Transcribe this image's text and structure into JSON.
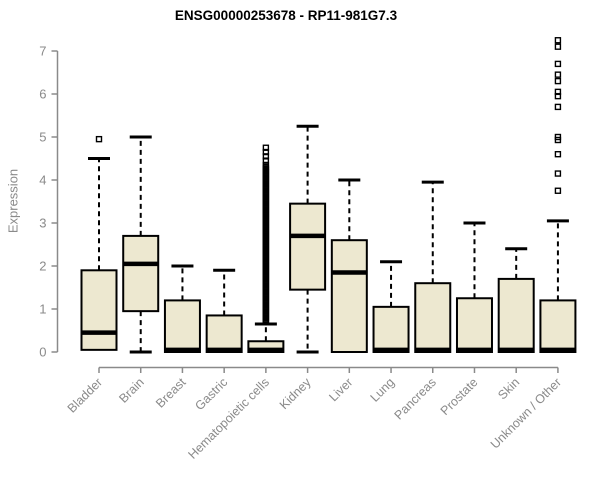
{
  "chart_data": {
    "type": "boxplot",
    "title": "ENSG00000253678 - RP11-981G7.3",
    "ylabel": "Expression",
    "xlabel": "",
    "ylim": [
      0,
      7.3
    ],
    "yticks": [
      0,
      1,
      2,
      3,
      4,
      5,
      6,
      7
    ],
    "grid": false,
    "legend": "none",
    "categories": [
      "Bladder",
      "Brain",
      "Breast",
      "Gastric",
      "Hematopoietic cells",
      "Kidney",
      "Liver",
      "Lung",
      "Pancreas",
      "Prostate",
      "Skin",
      "Unknown / Other"
    ],
    "boxes": [
      {
        "category": "Bladder",
        "whisker_low": 0.05,
        "q1": 0.05,
        "median": 0.45,
        "q3": 1.9,
        "whisker_high": 4.5,
        "outliers": [
          4.95
        ]
      },
      {
        "category": "Brain",
        "whisker_low": 0.0,
        "q1": 0.95,
        "median": 2.05,
        "q3": 2.7,
        "whisker_high": 5.0,
        "outliers": []
      },
      {
        "category": "Breast",
        "whisker_low": 0.0,
        "q1": 0.0,
        "median": 0.05,
        "q3": 1.2,
        "whisker_high": 2.0,
        "outliers": []
      },
      {
        "category": "Gastric",
        "whisker_low": 0.0,
        "q1": 0.0,
        "median": 0.05,
        "q3": 0.85,
        "whisker_high": 1.9,
        "outliers": []
      },
      {
        "category": "Hematopoietic cells",
        "whisker_low": 0.0,
        "q1": 0.0,
        "median": 0.05,
        "q3": 0.25,
        "whisker_high": 0.65,
        "outliers": [
          4.35,
          4.45,
          4.55,
          4.65,
          4.75
        ],
        "dense_outliers": {
          "min": 0.7,
          "max": 4.3,
          "count": 120
        }
      },
      {
        "category": "Kidney",
        "whisker_low": 0.0,
        "q1": 1.45,
        "median": 2.7,
        "q3": 3.45,
        "whisker_high": 5.25,
        "outliers": []
      },
      {
        "category": "Liver",
        "whisker_low": 0.0,
        "q1": 0.0,
        "median": 1.85,
        "q3": 2.6,
        "whisker_high": 4.0,
        "outliers": []
      },
      {
        "category": "Lung",
        "whisker_low": 0.0,
        "q1": 0.0,
        "median": 0.05,
        "q3": 1.05,
        "whisker_high": 2.1,
        "outliers": []
      },
      {
        "category": "Pancreas",
        "whisker_low": 0.0,
        "q1": 0.0,
        "median": 0.05,
        "q3": 1.6,
        "whisker_high": 3.95,
        "outliers": []
      },
      {
        "category": "Prostate",
        "whisker_low": 0.0,
        "q1": 0.0,
        "median": 0.05,
        "q3": 1.25,
        "whisker_high": 3.0,
        "outliers": []
      },
      {
        "category": "Skin",
        "whisker_low": 0.0,
        "q1": 0.0,
        "median": 0.05,
        "q3": 1.7,
        "whisker_high": 2.4,
        "outliers": []
      },
      {
        "category": "Unknown / Other",
        "whisker_low": 0.0,
        "q1": 0.0,
        "median": 0.05,
        "q3": 1.2,
        "whisker_high": 3.05,
        "outliers": [
          3.75,
          4.15,
          4.6,
          4.93,
          5.0,
          5.7,
          5.95,
          6.05,
          6.3,
          6.45,
          6.7,
          7.1,
          7.25
        ]
      }
    ],
    "colors": {
      "box_fill": "#EDE8D0",
      "box_border": "#000000",
      "median": "#000000",
      "whisker": "#000000",
      "outlier": "#000000",
      "axis": "#8a8a8a",
      "tick_label": "#8a8a8a",
      "title": "#000000",
      "background": "#ffffff"
    }
  }
}
